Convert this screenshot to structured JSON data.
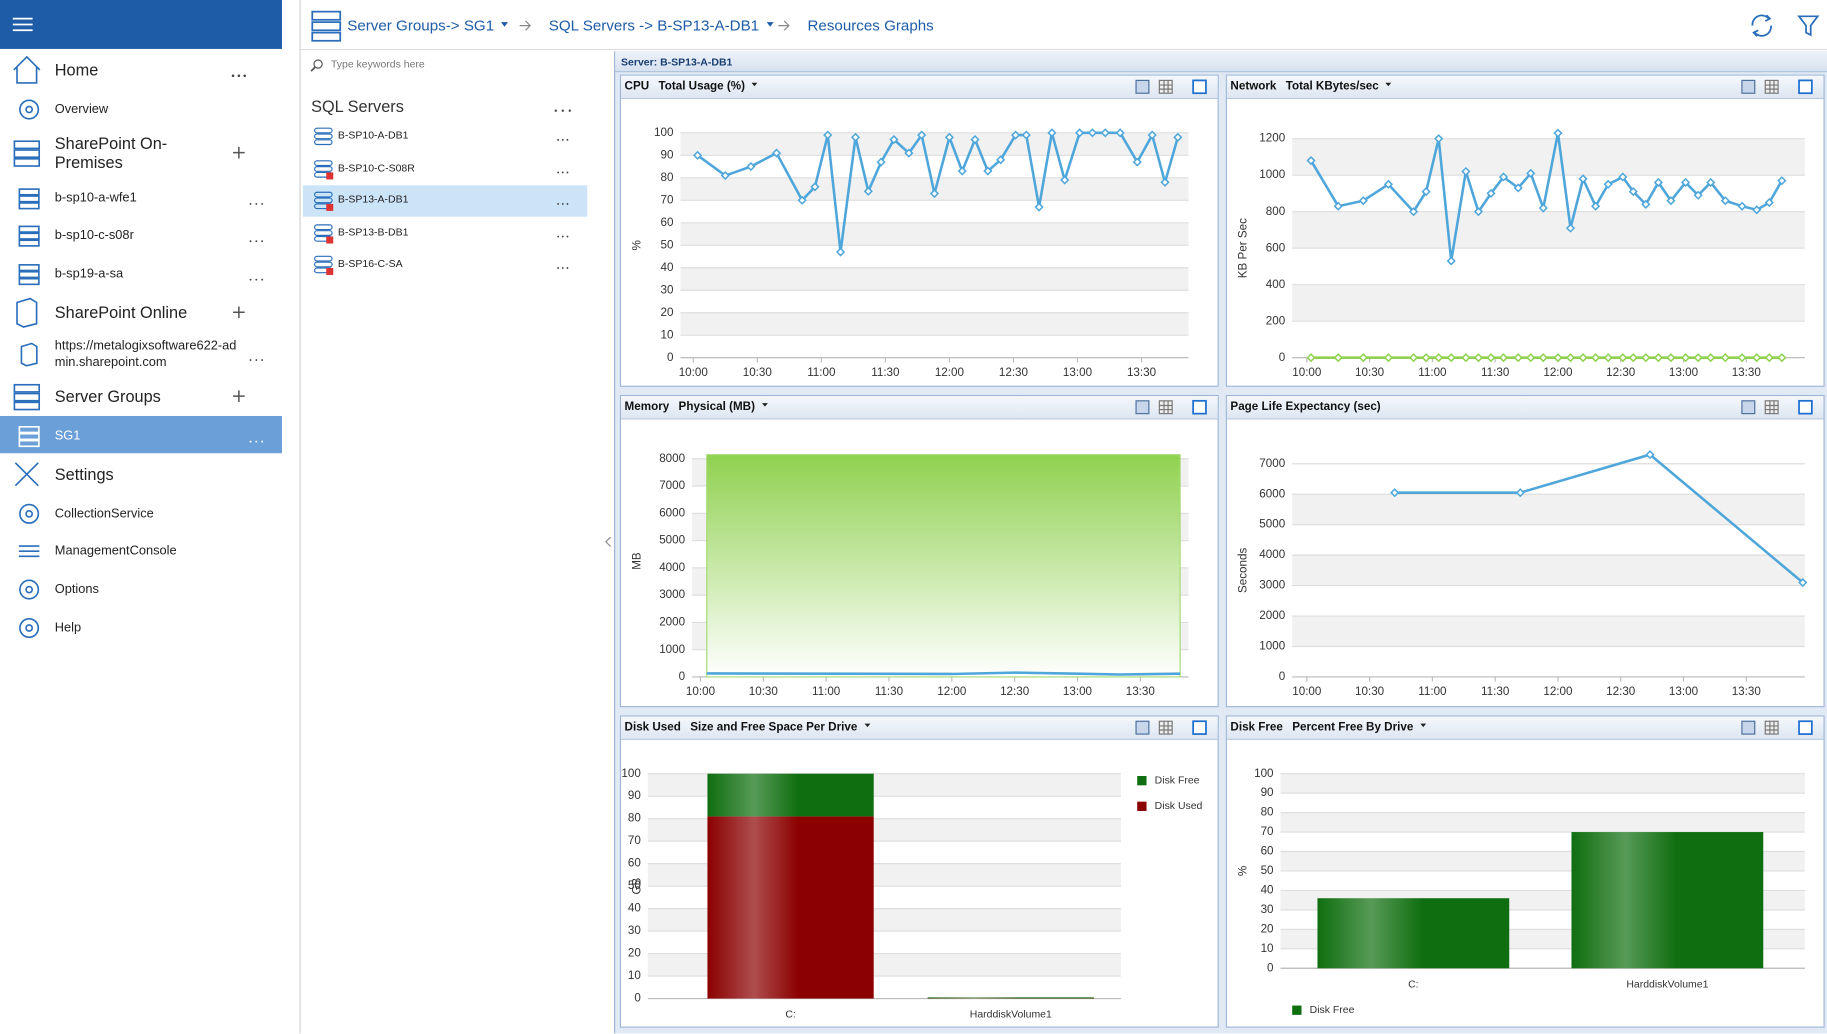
{
  "nav": [
    {
      "label": "Home"
    },
    {
      "label": "Overview"
    },
    {
      "label": "SharePoint On-Premises"
    },
    {
      "label": "b-sp10-a-wfe1"
    },
    {
      "label": "b-sp10-c-s08r"
    },
    {
      "label": "b-sp19-a-sa"
    },
    {
      "label": "SharePoint Online"
    },
    {
      "label": "https://metalogixsoftware622-admin.sharepoint.com"
    },
    {
      "label": "Server Groups"
    },
    {
      "label": "SG1"
    },
    {
      "label": "Settings"
    },
    {
      "label": "CollectionService"
    },
    {
      "label": "ManagementConsole"
    },
    {
      "label": "Options"
    },
    {
      "label": "Help"
    }
  ],
  "breadcrumb": [
    "Server Groups-> SG1",
    "SQL Servers -> B-SP13-A-DB1",
    "Resources Graphs"
  ],
  "search_placeholder": "Type keywords here",
  "server_list": {
    "title": "SQL Servers",
    "items": [
      "B-SP10-A-DB1",
      "B-SP10-C-S08R",
      "B-SP13-A-DB1",
      "B-SP13-B-DB1",
      "B-SP16-C-SA"
    ]
  },
  "dashboard_title": "Server: B-SP13-A-DB1",
  "panels": [
    {
      "type": "line",
      "title": "CPU",
      "subtitle": "Total Usage (%)",
      "ylabel": "%",
      "xlim": [
        "09:54",
        "13:52"
      ],
      "xticks": [
        "10:00",
        "10:30",
        "11:00",
        "11:30",
        "12:00",
        "12:30",
        "13:00",
        "13:30"
      ],
      "ylim": [
        0,
        100
      ],
      "yticks": [
        0,
        10,
        20,
        30,
        40,
        50,
        60,
        70,
        80,
        90,
        100
      ],
      "grid": true,
      "series": [
        {
          "color": "#4ea6da",
          "markers": true,
          "x": [
            "10:02",
            "10:15",
            "10:27",
            "10:39",
            "10:51",
            "10:57",
            "11:03",
            "11:09",
            "11:16",
            "11:22",
            "11:28",
            "11:34",
            "11:41",
            "11:47",
            "11:53",
            "12:00",
            "12:06",
            "12:12",
            "12:18",
            "12:24",
            "12:31",
            "12:36",
            "12:42",
            "12:48",
            "12:54",
            "13:01",
            "13:07",
            "13:13",
            "13:20",
            "13:28",
            "13:35",
            "13:41",
            "13:47"
          ],
          "values": [
            90,
            81,
            85,
            91,
            70,
            76,
            99,
            47,
            98,
            74,
            87,
            97,
            91,
            99,
            73,
            98,
            83,
            97,
            83,
            88,
            99,
            99,
            67,
            100,
            79,
            100,
            100,
            100,
            100,
            87,
            99,
            78,
            98
          ]
        }
      ]
    },
    {
      "type": "line",
      "title": "Network",
      "subtitle": "Total KBytes/sec",
      "ylabel": "KB Per Sec",
      "xlim": [
        "09:53",
        "13:58"
      ],
      "xticks": [
        "10:00",
        "10:30",
        "11:00",
        "11:30",
        "12:00",
        "12:30",
        "13:00",
        "13:30"
      ],
      "ylim": [
        0,
        1200
      ],
      "yticks": [
        0,
        200,
        400,
        600,
        800,
        1000,
        1200
      ],
      "grid": true,
      "series": [
        {
          "color": "#4ea6da",
          "markers": true,
          "x": [
            "10:02",
            "10:15",
            "10:27",
            "10:39",
            "10:51",
            "10:57",
            "11:03",
            "11:09",
            "11:16",
            "11:22",
            "11:28",
            "11:34",
            "11:41",
            "11:47",
            "11:53",
            "12:00",
            "12:06",
            "12:12",
            "12:18",
            "12:24",
            "12:31",
            "12:36",
            "12:42",
            "12:48",
            "12:54",
            "13:01",
            "13:07",
            "13:13",
            "13:20",
            "13:28",
            "13:35",
            "13:41",
            "13:47"
          ],
          "values": [
            1080,
            830,
            860,
            950,
            800,
            910,
            1200,
            530,
            1020,
            800,
            900,
            990,
            930,
            1010,
            820,
            1230,
            710,
            980,
            830,
            950,
            990,
            910,
            840,
            960,
            860,
            960,
            890,
            960,
            860,
            830,
            810,
            850,
            970
          ]
        },
        {
          "color": "#8fd14f",
          "markers": true,
          "x": [
            "10:02",
            "10:15",
            "10:27",
            "10:39",
            "10:51",
            "10:57",
            "11:03",
            "11:09",
            "11:16",
            "11:22",
            "11:28",
            "11:34",
            "11:41",
            "11:47",
            "11:53",
            "12:00",
            "12:06",
            "12:12",
            "12:18",
            "12:24",
            "12:31",
            "12:36",
            "12:42",
            "12:48",
            "12:54",
            "13:01",
            "13:07",
            "13:13",
            "13:20",
            "13:28",
            "13:35",
            "13:41",
            "13:47"
          ],
          "values": [
            0,
            0,
            0,
            0,
            0,
            0,
            0,
            0,
            0,
            0,
            0,
            0,
            0,
            0,
            0,
            0,
            0,
            0,
            0,
            0,
            0,
            0,
            0,
            0,
            0,
            0,
            0,
            0,
            0,
            0,
            0,
            0,
            0
          ]
        }
      ]
    },
    {
      "type": "line",
      "title": "Memory",
      "subtitle": "Physical (MB)",
      "ylabel": "MB",
      "xlim": [
        "09:56",
        "13:53"
      ],
      "xticks": [
        "10:00",
        "10:30",
        "11:00",
        "11:30",
        "12:00",
        "12:30",
        "13:00",
        "13:30"
      ],
      "ylim": [
        0,
        8500
      ],
      "yticks": [
        0,
        1000,
        2000,
        3000,
        4000,
        5000,
        6000,
        7000,
        8000
      ],
      "grid": true,
      "series": [
        {
          "color": "#8fd14f",
          "area": true,
          "x": [
            "10:03",
            "13:49"
          ],
          "values": [
            8150,
            8150
          ]
        },
        {
          "color": "#4ea6da",
          "x": [
            "10:03",
            "11:00",
            "12:00",
            "12:30",
            "13:00",
            "13:20",
            "13:49"
          ],
          "values": [
            130,
            120,
            110,
            160,
            120,
            90,
            120
          ]
        }
      ]
    },
    {
      "type": "line",
      "title": "Page Life Expectancy (sec)",
      "ylabel": "Seconds",
      "xlim": [
        "09:53",
        "13:58"
      ],
      "xticks": [
        "10:00",
        "10:30",
        "11:00",
        "11:30",
        "12:00",
        "12:30",
        "13:00",
        "13:30"
      ],
      "ylim": [
        0,
        7000
      ],
      "yticks": [
        0,
        1000,
        2000,
        3000,
        4000,
        5000,
        6000,
        7000
      ],
      "grid": true,
      "series": [
        {
          "color": "#4ea6da",
          "markers": true,
          "x": [
            "10:42",
            "11:42",
            "12:44",
            "13:57"
          ],
          "values": [
            6050,
            6050,
            7300,
            3100
          ]
        }
      ]
    },
    {
      "type": "bar",
      "stacked": true,
      "title": "Disk Used",
      "subtitle": "Size and Free Space Per Drive",
      "ylabel": "GB",
      "categories": [
        "C:",
        "HarddiskVolume1"
      ],
      "ylim": [
        0,
        100
      ],
      "yticks": [
        0,
        10,
        20,
        30,
        40,
        50,
        60,
        70,
        80,
        90,
        100
      ],
      "grid": true,
      "legend": "right",
      "series": [
        {
          "name": "Disk Free",
          "color": "#0f6e0f",
          "values": [
            19,
            0
          ]
        },
        {
          "name": "Disk Used",
          "color": "#8b0000",
          "values": [
            81,
            0.5
          ]
        }
      ]
    },
    {
      "type": "bar",
      "title": "Disk Free",
      "subtitle": "Percent Free By Drive",
      "ylabel": "%",
      "categories": [
        "C:",
        "HarddiskVolume1"
      ],
      "ylim": [
        0,
        100
      ],
      "yticks": [
        0,
        10,
        20,
        30,
        40,
        50,
        60,
        70,
        80,
        90,
        100
      ],
      "grid": true,
      "legend": "bottom",
      "series": [
        {
          "name": "Disk Free",
          "color": "#0f6e0f",
          "values": [
            36,
            70
          ]
        }
      ]
    }
  ]
}
